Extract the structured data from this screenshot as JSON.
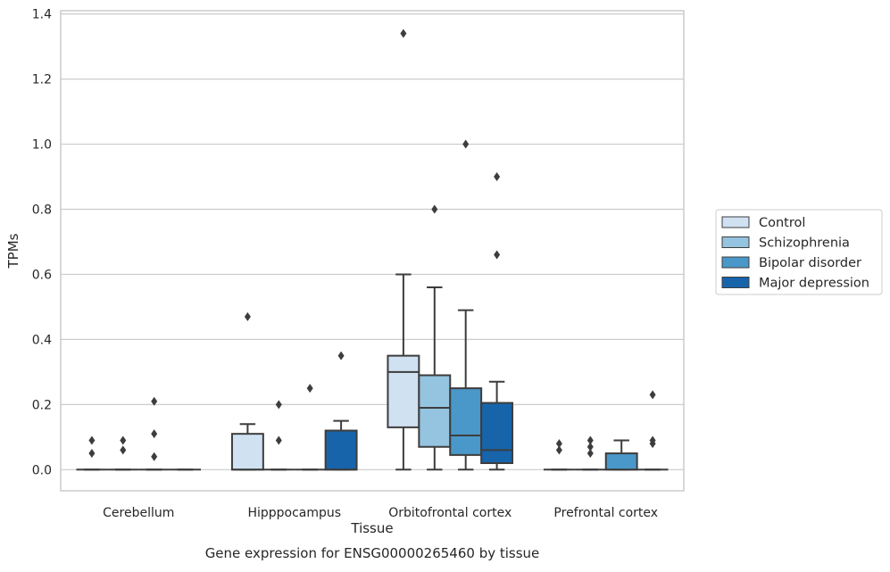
{
  "chart_data": {
    "type": "box",
    "caption": "Gene expression for ENSG00000265460 by tissue",
    "xlabel": "Tissue",
    "ylabel": "TPMs",
    "ylim": [
      -0.065,
      1.41
    ],
    "yticks": [
      0.0,
      0.2,
      0.4,
      0.6,
      0.8,
      1.0,
      1.2,
      1.4
    ],
    "ytick_labels": [
      "0.0",
      "0.2",
      "0.4",
      "0.6",
      "0.8",
      "1.0",
      "1.2",
      "1.4"
    ],
    "grid": "horizontal",
    "legend_position": "right",
    "categories": [
      "Cerebellum",
      "Hipppocampus",
      "Orbitofrontal cortex",
      "Prefrontal cortex"
    ],
    "series": [
      {
        "name": "Control",
        "color": "#d0e1f2",
        "boxes": [
          {
            "q1": 0.0,
            "median": 0.0,
            "q3": 0.0,
            "whislo": 0.0,
            "whishi": 0.0,
            "fliers": [
              0.05,
              0.09
            ]
          },
          {
            "q1": 0.0,
            "median": 0.0,
            "q3": 0.11,
            "whislo": 0.0,
            "whishi": 0.14,
            "fliers": [
              0.47
            ]
          },
          {
            "q1": 0.13,
            "median": 0.3,
            "q3": 0.35,
            "whislo": 0.0,
            "whishi": 0.6,
            "fliers": [
              1.34
            ]
          },
          {
            "q1": 0.0,
            "median": 0.0,
            "q3": 0.0,
            "whislo": 0.0,
            "whishi": 0.0,
            "fliers": [
              0.06,
              0.08
            ]
          }
        ]
      },
      {
        "name": "Schizophrenia",
        "color": "#94c4df",
        "boxes": [
          {
            "q1": 0.0,
            "median": 0.0,
            "q3": 0.0,
            "whislo": 0.0,
            "whishi": 0.0,
            "fliers": [
              0.06,
              0.09
            ]
          },
          {
            "q1": 0.0,
            "median": 0.0,
            "q3": 0.0,
            "whislo": 0.0,
            "whishi": 0.0,
            "fliers": [
              0.09,
              0.2
            ]
          },
          {
            "q1": 0.07,
            "median": 0.19,
            "q3": 0.29,
            "whislo": 0.0,
            "whishi": 0.56,
            "fliers": [
              0.8
            ]
          },
          {
            "q1": 0.0,
            "median": 0.0,
            "q3": 0.0,
            "whislo": 0.0,
            "whishi": 0.0,
            "fliers": [
              0.05,
              0.07,
              0.09
            ]
          }
        ]
      },
      {
        "name": "Bipolar disorder",
        "color": "#4a98c9",
        "boxes": [
          {
            "q1": 0.0,
            "median": 0.0,
            "q3": 0.0,
            "whislo": 0.0,
            "whishi": 0.0,
            "fliers": [
              0.04,
              0.11,
              0.21
            ]
          },
          {
            "q1": 0.0,
            "median": 0.0,
            "q3": 0.0,
            "whislo": 0.0,
            "whishi": 0.0,
            "fliers": [
              0.25
            ]
          },
          {
            "q1": 0.045,
            "median": 0.105,
            "q3": 0.25,
            "whislo": 0.0,
            "whishi": 0.49,
            "fliers": [
              1.0
            ]
          },
          {
            "q1": 0.0,
            "median": 0.0,
            "q3": 0.05,
            "whislo": 0.0,
            "whishi": 0.09,
            "fliers": []
          }
        ]
      },
      {
        "name": "Major depression",
        "color": "#1764ab",
        "boxes": [
          {
            "q1": 0.0,
            "median": 0.0,
            "q3": 0.0,
            "whislo": 0.0,
            "whishi": 0.0,
            "fliers": []
          },
          {
            "q1": 0.0,
            "median": 0.0,
            "q3": 0.12,
            "whislo": 0.0,
            "whishi": 0.15,
            "fliers": [
              0.35
            ]
          },
          {
            "q1": 0.02,
            "median": 0.06,
            "q3": 0.205,
            "whislo": 0.0,
            "whishi": 0.27,
            "fliers": [
              0.66,
              0.9
            ]
          },
          {
            "q1": 0.0,
            "median": 0.0,
            "q3": 0.0,
            "whislo": 0.0,
            "whishi": 0.0,
            "fliers": [
              0.08,
              0.09,
              0.23
            ]
          }
        ]
      }
    ]
  }
}
